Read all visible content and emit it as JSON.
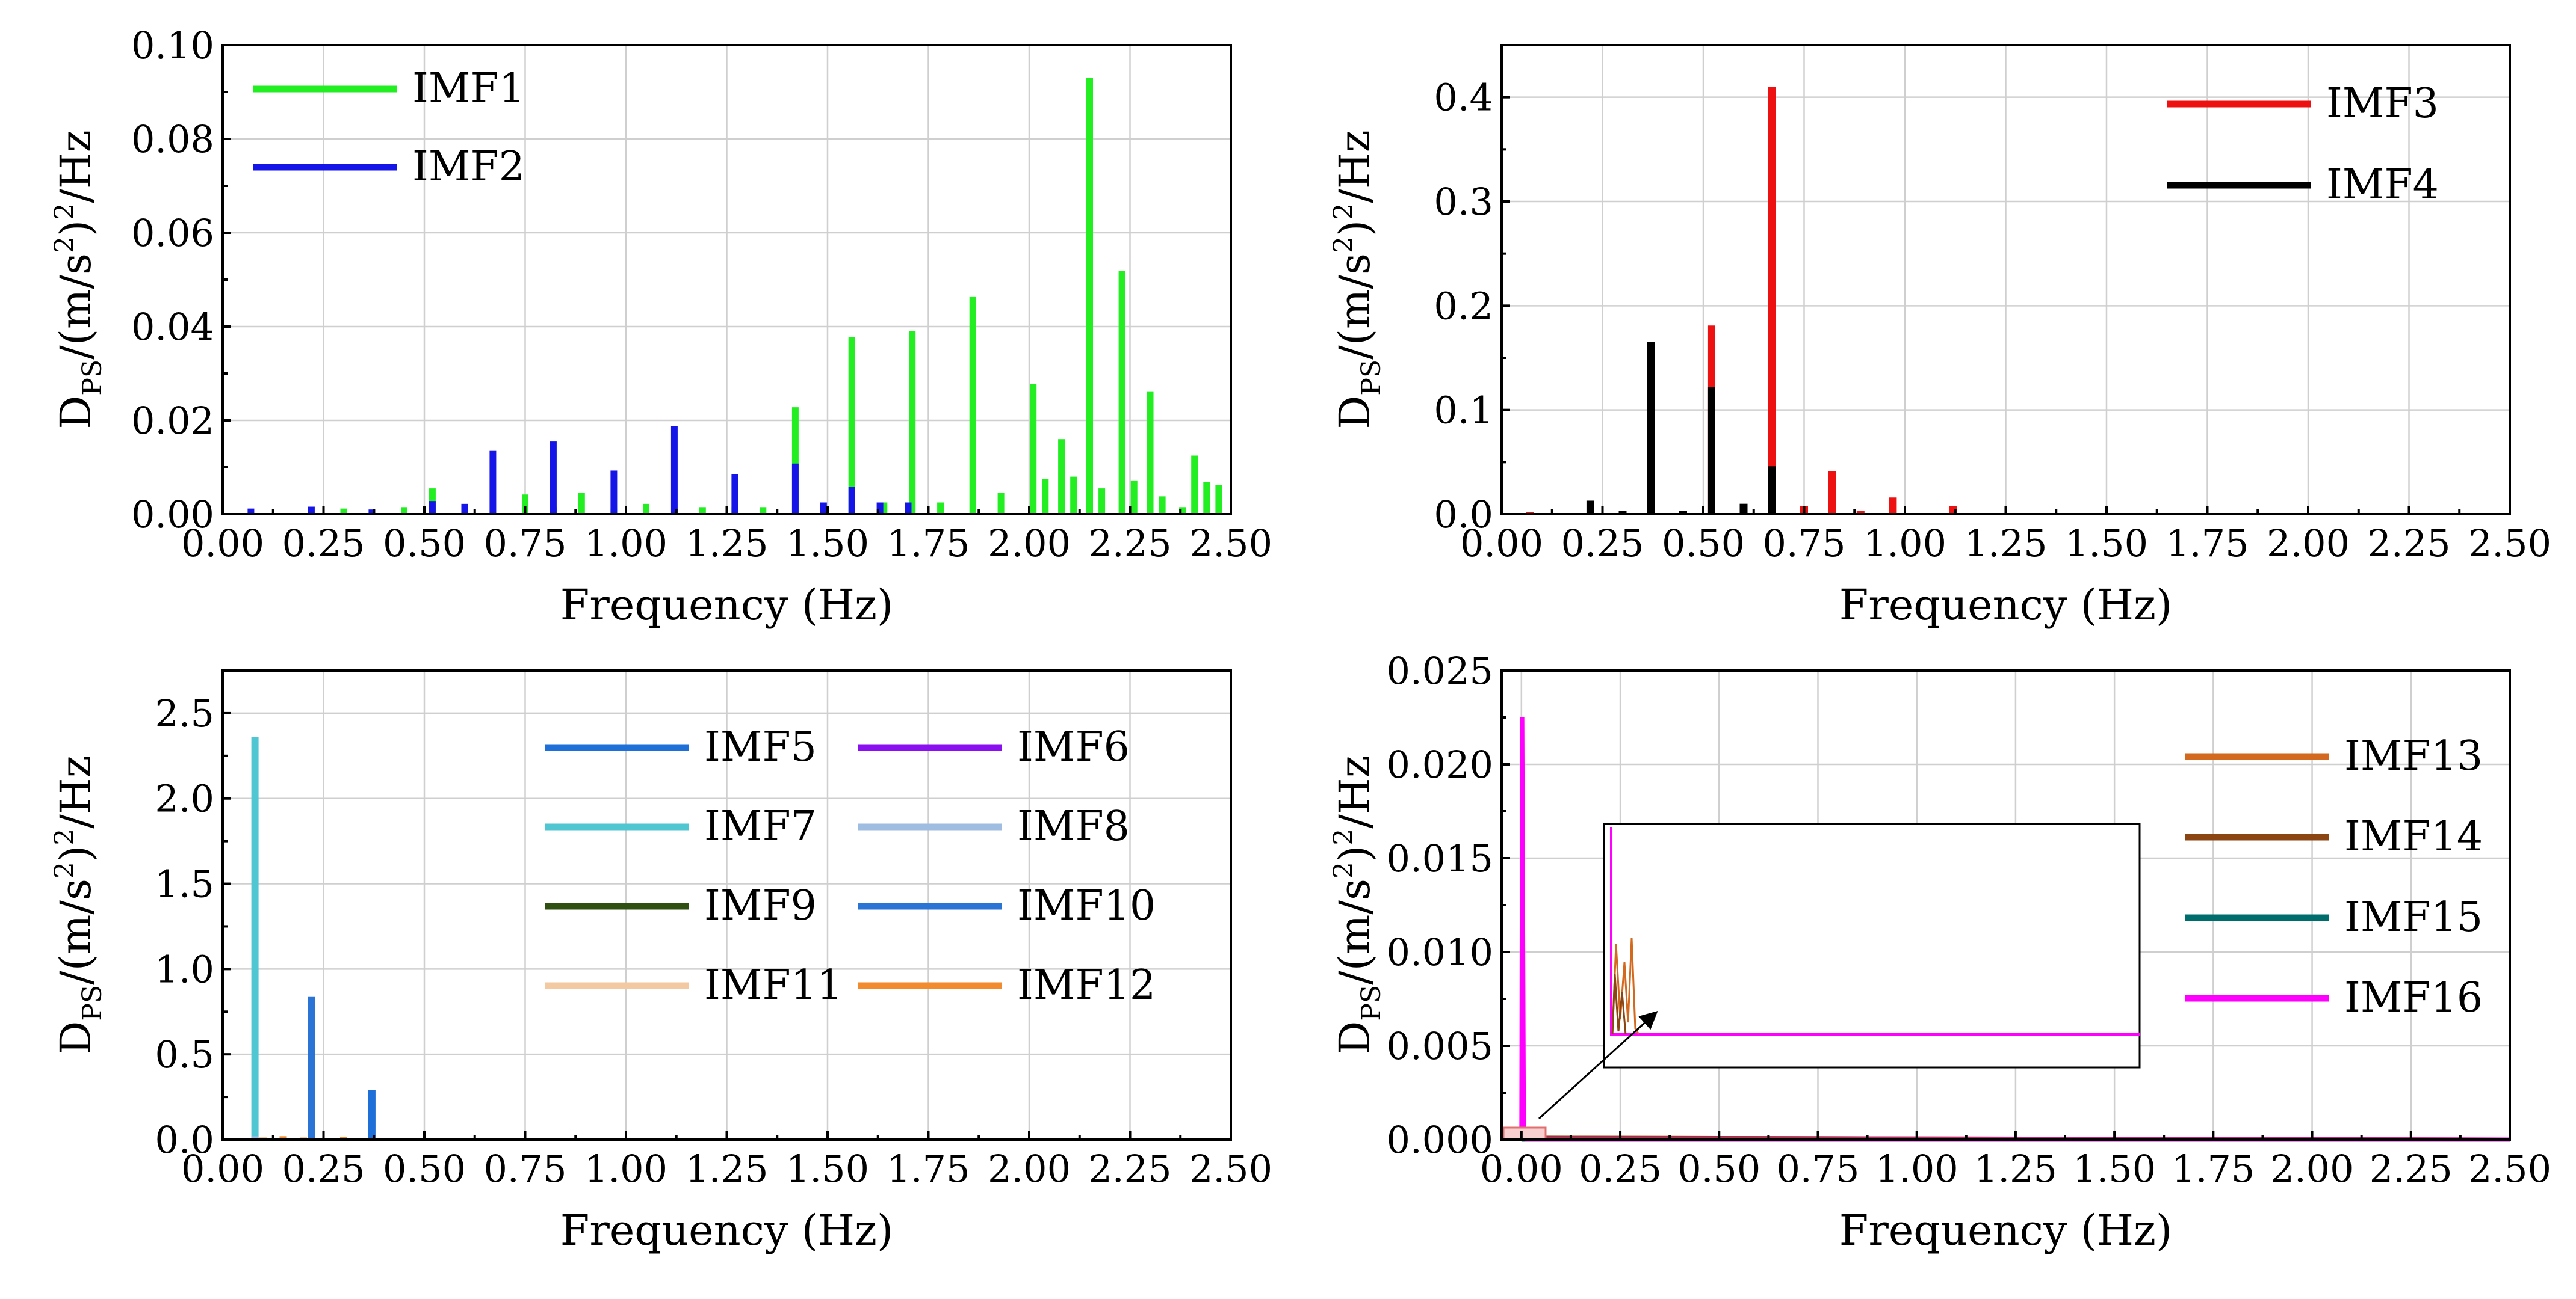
{
  "figure": {
    "xlabel": "Frequency (Hz)",
    "ylabel_main": "D",
    "ylabel_sub": "PS",
    "ylabel_rest_a": "/(m/s",
    "ylabel_sup": "2",
    "ylabel_rest_b": ")",
    "ylabel_sup2": "2",
    "ylabel_rest_c": "/Hz"
  },
  "chart_data": [
    {
      "id": "top-left",
      "type": "bar",
      "xlabel": "Frequency (Hz)",
      "ylabel": "DPS/(m/s2)2/Hz",
      "xlim": [
        0,
        2.5
      ],
      "ylim": [
        0,
        0.1
      ],
      "x_ticks": [
        "0.00",
        "0.25",
        "0.50",
        "0.75",
        "1.00",
        "1.25",
        "1.50",
        "1.75",
        "2.00",
        "2.25",
        "2.50"
      ],
      "y_ticks": [
        "0.00",
        "0.02",
        "0.04",
        "0.06",
        "0.08",
        "0.10"
      ],
      "legend_columns": 1,
      "legend_position": "top-left",
      "series": [
        {
          "name": "IMF1",
          "color": "#22ee22",
          "x": [
            0.3,
            0.45,
            0.52,
            0.6,
            0.75,
            0.82,
            0.89,
            0.97,
            1.05,
            1.19,
            1.27,
            1.34,
            1.42,
            1.49,
            1.56,
            1.64,
            1.71,
            1.78,
            1.86,
            1.93,
            2.01,
            2.04,
            2.08,
            2.11,
            2.15,
            2.18,
            2.23,
            2.26,
            2.3,
            2.33,
            2.38,
            2.41,
            2.44,
            2.47
          ],
          "y": [
            0.0012,
            0.0015,
            0.0055,
            0.0015,
            0.0042,
            0.0015,
            0.0045,
            0.0012,
            0.0022,
            0.0015,
            0.0015,
            0.0015,
            0.0228,
            0.0015,
            0.0378,
            0.0025,
            0.039,
            0.0025,
            0.0463,
            0.0045,
            0.0278,
            0.0075,
            0.016,
            0.008,
            0.093,
            0.0055,
            0.0518,
            0.0072,
            0.0262,
            0.0038,
            0.0015,
            0.0125,
            0.0068,
            0.0062
          ]
        },
        {
          "name": "IMF2",
          "color": "#1515e8",
          "x": [
            0.07,
            0.22,
            0.37,
            0.52,
            0.6,
            0.67,
            0.82,
            0.97,
            1.12,
            1.27,
            1.42,
            1.49,
            1.56,
            1.63,
            1.7
          ],
          "y": [
            0.0012,
            0.0016,
            0.001,
            0.0028,
            0.0022,
            0.0135,
            0.0155,
            0.0093,
            0.0188,
            0.0085,
            0.0108,
            0.0025,
            0.0058,
            0.0025,
            0.0025
          ]
        }
      ]
    },
    {
      "id": "top-right",
      "type": "bar",
      "xlabel": "Frequency (Hz)",
      "ylabel": "DPS/(m/s2)2/Hz",
      "xlim": [
        0,
        2.5
      ],
      "ylim": [
        0,
        0.45
      ],
      "x_ticks": [
        "0.00",
        "0.25",
        "0.50",
        "0.75",
        "1.00",
        "1.25",
        "1.50",
        "1.75",
        "2.00",
        "2.25",
        "2.50"
      ],
      "y_ticks": [
        "0.0",
        "0.1",
        "0.2",
        "0.3",
        "0.4"
      ],
      "legend_columns": 1,
      "legend_position": "top-right",
      "series": [
        {
          "name": "IMF3",
          "color": "#ee1111",
          "x": [
            0.07,
            0.52,
            0.67,
            0.75,
            0.82,
            0.89,
            0.97,
            1.12
          ],
          "y": [
            0.002,
            0.181,
            0.41,
            0.008,
            0.041,
            0.003,
            0.016,
            0.008
          ]
        },
        {
          "name": "IMF4",
          "color": "#000000",
          "x": [
            0.22,
            0.3,
            0.37,
            0.45,
            0.52,
            0.6,
            0.67
          ],
          "y": [
            0.013,
            0.003,
            0.165,
            0.003,
            0.122,
            0.01,
            0.046
          ]
        }
      ]
    },
    {
      "id": "bottom-left",
      "type": "bar",
      "xlabel": "Frequency (Hz)",
      "ylabel": "DPS/(m/s2)2/Hz",
      "xlim": [
        0,
        2.5
      ],
      "ylim": [
        0,
        2.75
      ],
      "x_ticks": [
        "0.00",
        "0.25",
        "0.50",
        "0.75",
        "1.00",
        "1.25",
        "1.50",
        "1.75",
        "2.00",
        "2.25",
        "2.50"
      ],
      "y_ticks": [
        "0.0",
        "0.5",
        "1.0",
        "1.5",
        "2.0",
        "2.5"
      ],
      "legend_columns": 2,
      "legend_position": "top-right",
      "series": [
        {
          "name": "IMF5",
          "color": "#1f6fd8",
          "x": [
            0.37
          ],
          "y": [
            0.29
          ]
        },
        {
          "name": "IMF6",
          "color": "#8a10f0",
          "x": [
            0.22
          ],
          "y": [
            0.27
          ]
        },
        {
          "name": "IMF7",
          "color": "#4fc6d2",
          "x": [
            0.08
          ],
          "y": [
            2.36
          ]
        },
        {
          "name": "IMF8",
          "color": "#9ebde0",
          "x": [
            0.08
          ],
          "y": [
            0.02
          ]
        },
        {
          "name": "IMF9",
          "color": "#2f5010",
          "x": [
            0.08
          ],
          "y": [
            0.01
          ]
        },
        {
          "name": "IMF10",
          "color": "#2a74d6",
          "x": [
            0.22
          ],
          "y": [
            0.84
          ]
        },
        {
          "name": "IMF11",
          "color": "#f2c9a0",
          "x": [
            0.1,
            0.2
          ],
          "y": [
            0.015,
            0.015
          ]
        },
        {
          "name": "IMF12",
          "color": "#f28a2e",
          "x": [
            0.15,
            0.3,
            0.52
          ],
          "y": [
            0.02,
            0.015,
            0.01
          ]
        }
      ]
    },
    {
      "id": "bottom-right",
      "type": "line",
      "xlabel": "Frequency (Hz)",
      "ylabel": "DPS/(m/s2)2/Hz",
      "xlim": [
        -0.05,
        2.5
      ],
      "ylim": [
        0,
        0.025
      ],
      "x_ticks": [
        "0.00",
        "0.25",
        "0.50",
        "0.75",
        "1.00",
        "1.25",
        "1.50",
        "1.75",
        "2.00",
        "2.25",
        "2.50"
      ],
      "y_ticks": [
        "0.000",
        "0.005",
        "0.010",
        "0.015",
        "0.020",
        "0.025"
      ],
      "legend_columns": 1,
      "legend_position": "right",
      "series": [
        {
          "name": "IMF13",
          "color": "#d2691e",
          "x": [
            0.0,
            0.01,
            0.02,
            0.03,
            2.5
          ],
          "y": [
            0.0001,
            0.0003,
            0.0002,
            0.0001,
            0.0
          ]
        },
        {
          "name": "IMF14",
          "color": "#8b4513",
          "x": [
            0.0,
            0.005,
            0.01,
            0.02,
            2.5
          ],
          "y": [
            0.0001,
            0.0004,
            0.0001,
            0.0001,
            0.0
          ]
        },
        {
          "name": "IMF15",
          "color": "#006d6d",
          "x": [
            0.0,
            2.5
          ],
          "y": [
            0.0,
            0.0
          ]
        },
        {
          "name": "IMF16",
          "color": "#ff00ff",
          "x": [
            0.0,
            0.002,
            0.006,
            0.012,
            2.5
          ],
          "y": [
            0.0005,
            0.0225,
            0.0005,
            0.0,
            0.0
          ]
        }
      ]
    }
  ]
}
